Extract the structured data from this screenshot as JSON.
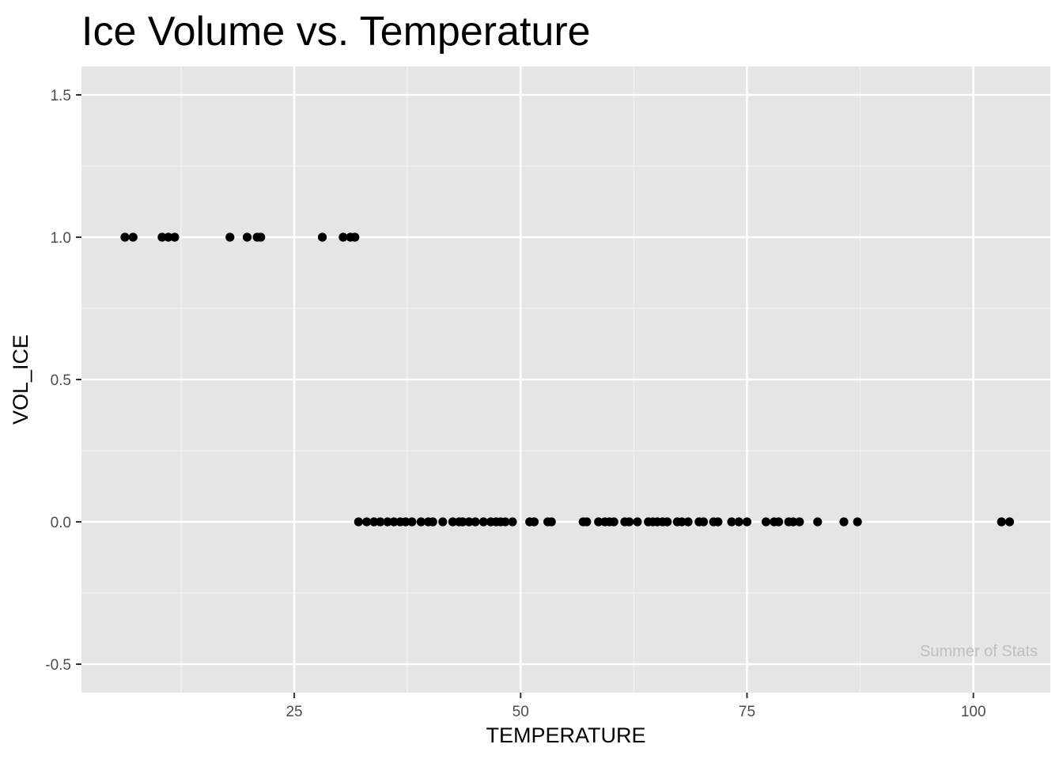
{
  "chart_data": {
    "type": "scatter",
    "title": "Ice Volume vs. Temperature",
    "xlabel": "TEMPERATURE",
    "ylabel": "VOL_ICE",
    "xlim": [
      1.5,
      108.5
    ],
    "ylim": [
      -0.6,
      1.6
    ],
    "x_ticks": [
      25,
      50,
      75,
      100
    ],
    "x_tick_labels": [
      "25",
      "50",
      "75",
      "100"
    ],
    "y_ticks": [
      -0.5,
      0.0,
      0.5,
      1.0,
      1.5
    ],
    "y_tick_labels": [
      "-0.5",
      "0.0",
      "0.5",
      "1.0",
      "1.5"
    ],
    "grid": true,
    "watermark": "Summer of Stats",
    "colors": {
      "panel_background": "#e5e5e5",
      "grid_major": "#ffffff",
      "grid_minor": "#f2f2f2",
      "point": "#000000",
      "watermark": "#bfbfbf"
    },
    "series": [
      {
        "points": [
          {
            "x": 6.3,
            "y": 1
          },
          {
            "x": 7.2,
            "y": 1
          },
          {
            "x": 10.4,
            "y": 1
          },
          {
            "x": 11.1,
            "y": 1
          },
          {
            "x": 11.8,
            "y": 1
          },
          {
            "x": 17.9,
            "y": 1
          },
          {
            "x": 19.8,
            "y": 1
          },
          {
            "x": 20.9,
            "y": 1
          },
          {
            "x": 21.3,
            "y": 1
          },
          {
            "x": 28.1,
            "y": 1
          },
          {
            "x": 30.4,
            "y": 1
          },
          {
            "x": 31.2,
            "y": 1
          },
          {
            "x": 31.7,
            "y": 1
          },
          {
            "x": 32.1,
            "y": 0
          },
          {
            "x": 33.0,
            "y": 0
          },
          {
            "x": 33.8,
            "y": 0
          },
          {
            "x": 34.5,
            "y": 0
          },
          {
            "x": 35.3,
            "y": 0
          },
          {
            "x": 36.0,
            "y": 0
          },
          {
            "x": 36.7,
            "y": 0
          },
          {
            "x": 37.3,
            "y": 0
          },
          {
            "x": 38.0,
            "y": 0
          },
          {
            "x": 39.0,
            "y": 0
          },
          {
            "x": 39.8,
            "y": 0
          },
          {
            "x": 40.3,
            "y": 0
          },
          {
            "x": 41.4,
            "y": 0
          },
          {
            "x": 42.5,
            "y": 0
          },
          {
            "x": 43.2,
            "y": 0
          },
          {
            "x": 43.6,
            "y": 0
          },
          {
            "x": 44.3,
            "y": 0
          },
          {
            "x": 45.0,
            "y": 0
          },
          {
            "x": 45.9,
            "y": 0
          },
          {
            "x": 46.7,
            "y": 0
          },
          {
            "x": 47.3,
            "y": 0
          },
          {
            "x": 47.8,
            "y": 0
          },
          {
            "x": 48.3,
            "y": 0
          },
          {
            "x": 49.1,
            "y": 0
          },
          {
            "x": 51.0,
            "y": 0
          },
          {
            "x": 51.5,
            "y": 0
          },
          {
            "x": 53.0,
            "y": 0
          },
          {
            "x": 53.4,
            "y": 0
          },
          {
            "x": 56.9,
            "y": 0
          },
          {
            "x": 57.3,
            "y": 0
          },
          {
            "x": 58.6,
            "y": 0
          },
          {
            "x": 59.3,
            "y": 0
          },
          {
            "x": 59.8,
            "y": 0
          },
          {
            "x": 60.3,
            "y": 0
          },
          {
            "x": 61.5,
            "y": 0
          },
          {
            "x": 62.0,
            "y": 0
          },
          {
            "x": 62.9,
            "y": 0
          },
          {
            "x": 64.1,
            "y": 0
          },
          {
            "x": 64.6,
            "y": 0
          },
          {
            "x": 65.1,
            "y": 0
          },
          {
            "x": 65.7,
            "y": 0
          },
          {
            "x": 66.2,
            "y": 0
          },
          {
            "x": 67.3,
            "y": 0
          },
          {
            "x": 67.8,
            "y": 0
          },
          {
            "x": 68.5,
            "y": 0
          },
          {
            "x": 69.7,
            "y": 0
          },
          {
            "x": 70.2,
            "y": 0
          },
          {
            "x": 71.3,
            "y": 0
          },
          {
            "x": 71.8,
            "y": 0
          },
          {
            "x": 73.3,
            "y": 0
          },
          {
            "x": 74.1,
            "y": 0
          },
          {
            "x": 75.0,
            "y": 0
          },
          {
            "x": 77.1,
            "y": 0
          },
          {
            "x": 78.0,
            "y": 0
          },
          {
            "x": 78.5,
            "y": 0
          },
          {
            "x": 79.6,
            "y": 0
          },
          {
            "x": 80.1,
            "y": 0
          },
          {
            "x": 80.8,
            "y": 0
          },
          {
            "x": 82.8,
            "y": 0
          },
          {
            "x": 85.7,
            "y": 0
          },
          {
            "x": 87.2,
            "y": 0
          },
          {
            "x": 103.1,
            "y": 0
          },
          {
            "x": 104.0,
            "y": 0
          }
        ]
      }
    ]
  }
}
